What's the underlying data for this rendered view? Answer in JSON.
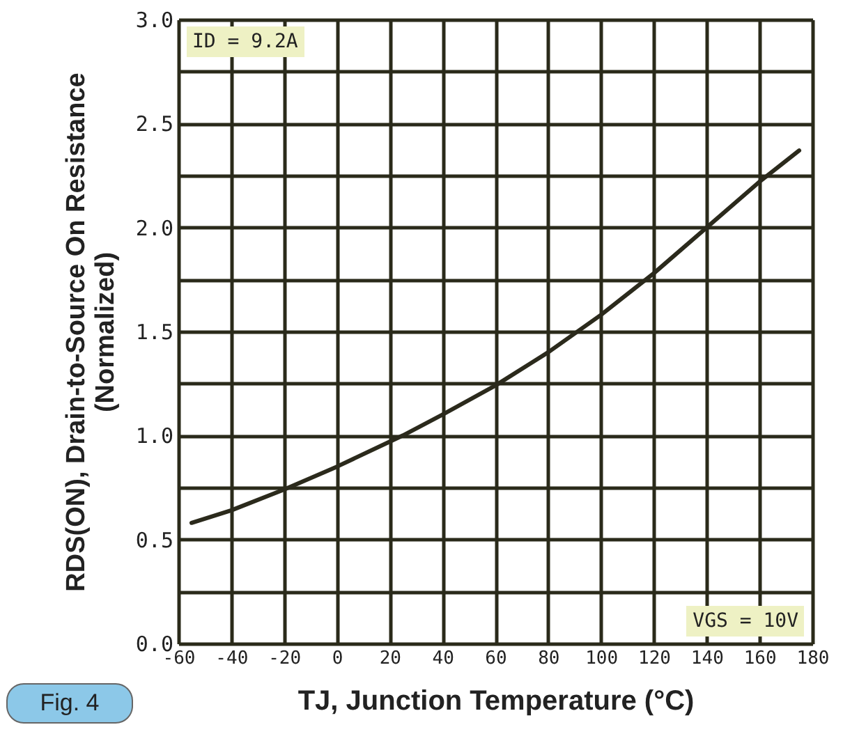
{
  "chart_data": {
    "type": "line",
    "xlabel": "TJ, Junction Temperature (°C)",
    "ylabel": "RDS(ON), Drain-to-Source On Resistance (Normalized)",
    "x": [
      -55,
      -40,
      -20,
      0,
      20,
      25,
      40,
      60,
      80,
      100,
      120,
      140,
      160,
      175
    ],
    "series": [
      {
        "color": "#2b2a1c",
        "values": [
          0.58,
          0.64,
          0.74,
          0.85,
          0.97,
          1.0,
          1.1,
          1.24,
          1.4,
          1.58,
          1.78,
          2.0,
          2.22,
          2.37
        ]
      }
    ],
    "xlim": [
      -60,
      180
    ],
    "xticks": [
      -60,
      -40,
      -20,
      0,
      20,
      40,
      60,
      80,
      100,
      120,
      140,
      160,
      180
    ],
    "ylim": [
      0,
      3
    ],
    "yticks": [
      {
        "value": 0,
        "label": "0.0"
      },
      {
        "value": 0.25,
        "label": null
      },
      {
        "value": 0.5,
        "label": "0.5"
      },
      {
        "value": 0.75,
        "label": null
      },
      {
        "value": 1,
        "label": "1.0"
      },
      {
        "value": 1.25,
        "label": null
      },
      {
        "value": 1.5,
        "label": "1.5"
      },
      {
        "value": 1.75,
        "label": null
      },
      {
        "value": 2,
        "label": "2.0"
      },
      {
        "value": 2.25,
        "label": null
      },
      {
        "value": 2.5,
        "label": "2.5"
      },
      {
        "value": 2.75,
        "label": null
      },
      {
        "value": 3,
        "label": "3.0"
      }
    ],
    "grid": true,
    "marker": "none",
    "line_style": "solid",
    "annotations": [
      "ID = 9.2A",
      "VGS = 10V",
      "Fig. 4"
    ]
  }
}
